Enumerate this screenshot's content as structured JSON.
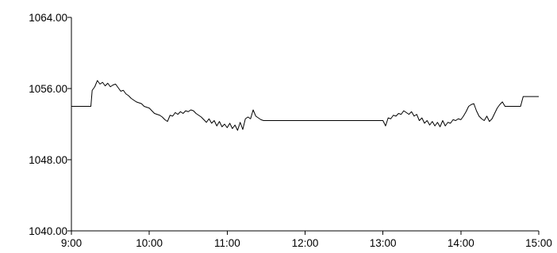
{
  "chart_data": {
    "type": "line",
    "title": "",
    "xlabel": "",
    "ylabel": "",
    "ylim": [
      1040,
      1064
    ],
    "yticks": [
      "1040.00",
      "1048.00",
      "1056.00",
      "1064.00"
    ],
    "xlim": [
      "9:00",
      "15:00"
    ],
    "xticks": [
      "9:00",
      "10:00",
      "11:00",
      "12:00",
      "13:00",
      "14:00",
      "15:00"
    ],
    "grid": false,
    "legend": "none",
    "colors": {
      "line": "#000000",
      "axis": "#000000",
      "background": "#ffffff"
    },
    "series": [
      {
        "x": [
          "9:00",
          "9:15",
          "9:16",
          "9:18",
          "9:20",
          "9:22",
          "9:24",
          "9:26",
          "9:28",
          "9:30",
          "9:32",
          "9:34",
          "9:36",
          "9:38",
          "9:40",
          "9:42",
          "9:44",
          "9:46",
          "9:48",
          "9:50",
          "9:52",
          "9:54",
          "9:56",
          "9:58",
          "10:00",
          "10:02",
          "10:04",
          "10:06",
          "10:08",
          "10:10",
          "10:12",
          "10:14",
          "10:16",
          "10:18",
          "10:20",
          "10:22",
          "10:24",
          "10:26",
          "10:28",
          "10:30",
          "10:32",
          "10:34",
          "10:36",
          "10:38",
          "10:40",
          "10:42",
          "10:44",
          "10:46",
          "10:48",
          "10:50",
          "10:52",
          "10:54",
          "10:56",
          "10:58",
          "11:00",
          "11:02",
          "11:04",
          "11:06",
          "11:08",
          "11:10",
          "11:12",
          "11:14",
          "11:16",
          "11:18",
          "11:20",
          "11:22",
          "11:24",
          "11:26",
          "11:28",
          "11:30",
          "13:00",
          "13:02",
          "13:04",
          "13:06",
          "13:08",
          "13:10",
          "13:12",
          "13:14",
          "13:16",
          "13:18",
          "13:20",
          "13:22",
          "13:24",
          "13:26",
          "13:28",
          "13:30",
          "13:32",
          "13:34",
          "13:36",
          "13:38",
          "13:40",
          "13:42",
          "13:44",
          "13:46",
          "13:48",
          "13:50",
          "13:52",
          "13:54",
          "13:56",
          "13:58",
          "14:00",
          "14:02",
          "14:04",
          "14:06",
          "14:08",
          "14:10",
          "14:12",
          "14:14",
          "14:16",
          "14:18",
          "14:20",
          "14:22",
          "14:24",
          "14:26",
          "14:28",
          "14:30",
          "14:32",
          "14:34",
          "14:44",
          "14:46",
          "14:48",
          "15:00"
        ],
        "values": [
          1054.0,
          1054.0,
          1055.8,
          1056.2,
          1056.9,
          1056.5,
          1056.7,
          1056.3,
          1056.6,
          1056.2,
          1056.4,
          1056.5,
          1056.1,
          1055.7,
          1055.8,
          1055.4,
          1055.2,
          1054.9,
          1054.7,
          1054.5,
          1054.4,
          1054.3,
          1054.0,
          1053.9,
          1053.8,
          1053.5,
          1053.2,
          1053.1,
          1053.0,
          1052.8,
          1052.5,
          1052.3,
          1053.0,
          1052.9,
          1053.3,
          1053.1,
          1053.4,
          1053.2,
          1053.5,
          1053.4,
          1053.6,
          1053.5,
          1053.2,
          1053.0,
          1052.8,
          1052.5,
          1052.2,
          1052.6,
          1052.1,
          1052.4,
          1051.8,
          1052.3,
          1051.7,
          1052.0,
          1051.6,
          1052.1,
          1051.5,
          1051.9,
          1051.3,
          1052.2,
          1051.4,
          1052.6,
          1052.8,
          1052.6,
          1053.6,
          1052.9,
          1052.7,
          1052.5,
          1052.4,
          1052.4,
          1052.4,
          1051.8,
          1052.7,
          1052.6,
          1053.0,
          1052.9,
          1053.2,
          1053.1,
          1053.5,
          1053.3,
          1053.1,
          1053.4,
          1052.9,
          1053.1,
          1052.4,
          1052.7,
          1052.1,
          1052.4,
          1051.9,
          1052.3,
          1051.8,
          1052.2,
          1051.7,
          1052.4,
          1051.8,
          1052.2,
          1052.1,
          1052.5,
          1052.4,
          1052.6,
          1052.5,
          1052.9,
          1053.4,
          1054.0,
          1054.2,
          1054.3,
          1053.5,
          1052.9,
          1052.6,
          1052.4,
          1052.9,
          1052.3,
          1052.6,
          1053.2,
          1053.8,
          1054.2,
          1054.5,
          1054.0,
          1054.0,
          1054.0,
          1055.1,
          1055.1
        ]
      }
    ]
  }
}
